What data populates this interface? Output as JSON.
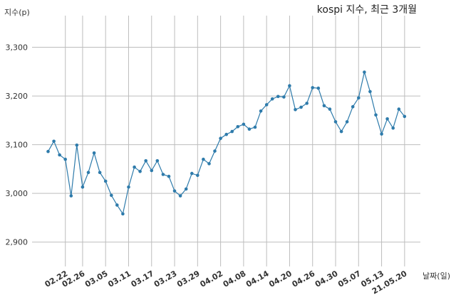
{
  "chart_data": {
    "type": "line",
    "title": "kospi 지수, 최근 3개월",
    "xlabel": "날짜(일)",
    "ylabel": "지수(p)",
    "ylim": [
      2850,
      3365
    ],
    "yticks": [
      "2,900",
      "3,000",
      "3,100",
      "3,200",
      "3,300"
    ],
    "ytick_values": [
      2900,
      3000,
      3100,
      3200,
      3300
    ],
    "xtick_labels": [
      "02.22",
      "02.26",
      "03.05",
      "03.11",
      "03.17",
      "03.23",
      "03.29",
      "04.02",
      "04.08",
      "04.14",
      "04.20",
      "04.26",
      "04.30",
      "05.07",
      "05.13",
      "21.05.20"
    ],
    "xtick_index": [
      3,
      6,
      10,
      14,
      18,
      22,
      26,
      30,
      34,
      38,
      42,
      46,
      50,
      54,
      58,
      62
    ],
    "grid": true,
    "color": "#2e7bab",
    "series": [
      {
        "values": [
          3086,
          3107,
          3079,
          3070,
          2995,
          3099,
          3013,
          3043,
          3083,
          3043,
          3025,
          2996,
          2976,
          2958,
          3013,
          3054,
          3045,
          3067,
          3047,
          3067,
          3039,
          3035,
          3005,
          2995,
          3009,
          3041,
          3037,
          3070,
          3061,
          3087,
          3113,
          3121,
          3127,
          3137,
          3142,
          3132,
          3136,
          3169,
          3182,
          3194,
          3199,
          3198,
          3221,
          3172,
          3177,
          3185,
          3217,
          3216,
          3180,
          3173,
          3147,
          3127,
          3147,
          3178,
          3196,
          3249,
          3209,
          3161,
          3122,
          3153,
          3134,
          3173,
          3158
        ]
      }
    ]
  }
}
